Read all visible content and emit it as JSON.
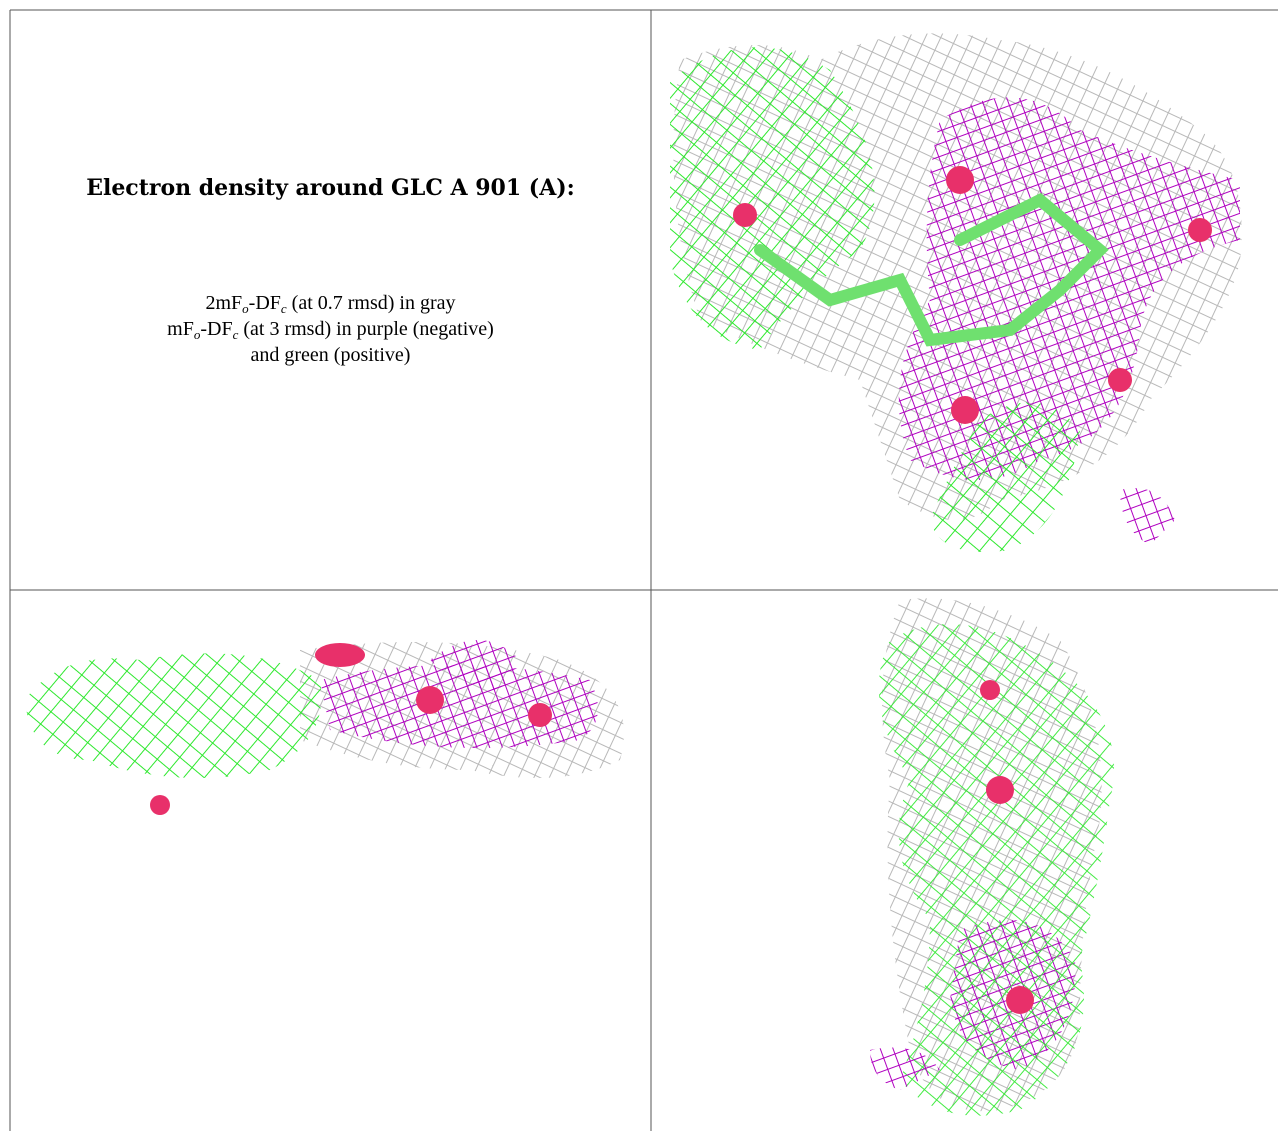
{
  "caption": {
    "title": "Electron density around GLC A 901 (A):",
    "lines": [
      [
        "2mF",
        "o",
        "-DF",
        "c",
        " (at 0.7 rmsd) in gray"
      ],
      [
        "mF",
        "o",
        "-DF",
        "c",
        " (at 3 rmsd) in purple (negative)"
      ],
      [
        "and green (positive)"
      ]
    ]
  }
}
